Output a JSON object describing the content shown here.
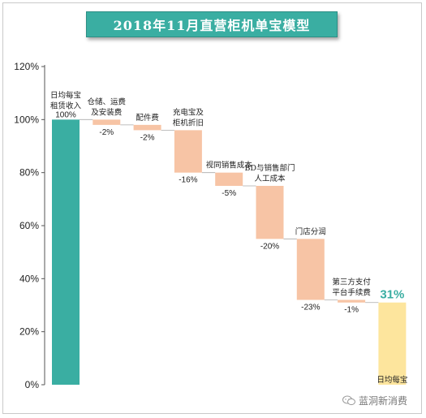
{
  "chart_data": {
    "type": "waterfall",
    "title": "2018年11月直营柜机单宝模型",
    "ylim": [
      0,
      120
    ],
    "yticks": [
      "0%",
      "20%",
      "40%",
      "60%",
      "80%",
      "100%",
      "120%"
    ],
    "steps": [
      {
        "label": [
          "日均每宝",
          "租赁收入"
        ],
        "value": 100,
        "value_label": "100%",
        "kind": "total"
      },
      {
        "label": [
          "仓储、运费",
          "及安装费"
        ],
        "value": -2,
        "value_label": "-2%",
        "kind": "delta"
      },
      {
        "label": [
          "配件费"
        ],
        "value": -2,
        "value_label": "-2%",
        "kind": "delta"
      },
      {
        "label": [
          "充电宝及",
          "柜机折旧"
        ],
        "value": -16,
        "value_label": "-16%",
        "kind": "delta"
      },
      {
        "label": [
          "视同销售成本"
        ],
        "value": -5,
        "value_label": "-5%",
        "kind": "delta"
      },
      {
        "label": [
          "BD与销售部门",
          "人工成本"
        ],
        "value": -20,
        "value_label": "-20%",
        "kind": "delta"
      },
      {
        "label": [
          "门店分润"
        ],
        "value": -23,
        "value_label": "-23%",
        "kind": "delta"
      },
      {
        "label": [
          "第三方支付",
          "平台手续费"
        ],
        "value": -1,
        "value_label": "-1%",
        "kind": "delta"
      },
      {
        "label": [
          "日均每宝"
        ],
        "value": 31,
        "value_label": "31%",
        "kind": "result"
      }
    ],
    "colors": {
      "total": "#3aaea2",
      "delta": "#f7c4a5",
      "result": "#fde59d",
      "title_bg": "#3aaea2",
      "final_text": "#3aaea2"
    },
    "grid": false
  },
  "watermark": {
    "text": "蓝洞新消费",
    "icon": "wechat-icon"
  }
}
